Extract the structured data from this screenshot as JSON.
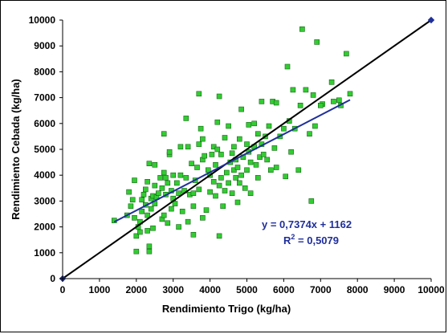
{
  "chart_data": {
    "type": "scatter",
    "xlabel": "Rendimiento Trigo (kg/ha)",
    "ylabel": "Rendimiento Cebada (kg/ha)",
    "xlim": [
      0,
      10000
    ],
    "ylim": [
      0,
      10000
    ],
    "xticks": [
      "0",
      "1000",
      "2000",
      "3000",
      "4000",
      "5000",
      "6000",
      "7000",
      "8000",
      "9000",
      "10000"
    ],
    "yticks": [
      "0",
      "1000",
      "2000",
      "3000",
      "4000",
      "5000",
      "6000",
      "7000",
      "8000",
      "9000",
      "10000"
    ],
    "grid": false,
    "legend": "none",
    "annotations": {
      "equation": "y = 0,7374x + 1162",
      "r2_prefix": "R",
      "r2_sup": "2",
      "r2_value": " = 0,5079"
    },
    "colors": {
      "points_fill": "#33cc33",
      "points_stroke": "#116611",
      "trend": "#1f2f9a",
      "one_to_one": "#000000",
      "text_annotation": "#1f2f9a"
    },
    "series": [
      {
        "kind": "points",
        "points": [
          [
            1400,
            2250
          ],
          [
            1750,
            2450
          ],
          [
            1800,
            3350
          ],
          [
            1850,
            2800
          ],
          [
            1900,
            3050
          ],
          [
            1950,
            2350
          ],
          [
            1950,
            3800
          ],
          [
            2000,
            1650
          ],
          [
            2000,
            1050
          ],
          [
            2050,
            2000
          ],
          [
            2100,
            1800
          ],
          [
            2100,
            2200
          ],
          [
            2150,
            2600
          ],
          [
            2150,
            3050
          ],
          [
            2200,
            3250
          ],
          [
            2250,
            2850
          ],
          [
            2250,
            3450
          ],
          [
            2300,
            1850
          ],
          [
            2300,
            2450
          ],
          [
            2300,
            3750
          ],
          [
            2350,
            1250
          ],
          [
            2350,
            1050
          ],
          [
            2350,
            4450
          ],
          [
            2400,
            2700
          ],
          [
            2400,
            3100
          ],
          [
            2450,
            1950
          ],
          [
            2450,
            3200
          ],
          [
            2500,
            2900
          ],
          [
            2500,
            3600
          ],
          [
            2500,
            4400
          ],
          [
            2550,
            3150
          ],
          [
            2600,
            3300
          ],
          [
            2650,
            3900
          ],
          [
            2700,
            2300
          ],
          [
            2700,
            3500
          ],
          [
            2750,
            2450
          ],
          [
            2750,
            4100
          ],
          [
            2750,
            5600
          ],
          [
            2800,
            3250
          ],
          [
            2800,
            3900
          ],
          [
            2850,
            2150
          ],
          [
            2850,
            3700
          ],
          [
            2900,
            4800
          ],
          [
            2900,
            4900
          ],
          [
            2950,
            2700
          ],
          [
            2950,
            3400
          ],
          [
            3000,
            3100
          ],
          [
            3000,
            4000
          ],
          [
            3050,
            2900
          ],
          [
            3100,
            3700
          ],
          [
            3150,
            2000
          ],
          [
            3150,
            3300
          ],
          [
            3200,
            4000
          ],
          [
            3200,
            5100
          ],
          [
            3250,
            2600
          ],
          [
            3300,
            3400
          ],
          [
            3350,
            6200
          ],
          [
            3350,
            3900
          ],
          [
            3400,
            2200
          ],
          [
            3400,
            5100
          ],
          [
            3450,
            3250
          ],
          [
            3500,
            4450
          ],
          [
            3550,
            1700
          ],
          [
            3550,
            2800
          ],
          [
            3550,
            3300
          ],
          [
            3600,
            3800
          ],
          [
            3650,
            4300
          ],
          [
            3700,
            3450
          ],
          [
            3700,
            5200
          ],
          [
            3700,
            7150
          ],
          [
            3750,
            5800
          ],
          [
            3800,
            2350
          ],
          [
            3800,
            4600
          ],
          [
            3800,
            5400
          ],
          [
            3850,
            4750
          ],
          [
            3900,
            2650
          ],
          [
            3950,
            4200
          ],
          [
            4000,
            3350
          ],
          [
            4000,
            4000
          ],
          [
            4050,
            4800
          ],
          [
            4100,
            3750
          ],
          [
            4100,
            5100
          ],
          [
            4150,
            3200
          ],
          [
            4150,
            4400
          ],
          [
            4200,
            6050
          ],
          [
            4200,
            5000
          ],
          [
            4250,
            3600
          ],
          [
            4250,
            7050
          ],
          [
            4250,
            1650
          ],
          [
            4300,
            3900
          ],
          [
            4300,
            4800
          ],
          [
            4350,
            2800
          ],
          [
            4400,
            3400
          ],
          [
            4400,
            5450
          ],
          [
            4450,
            4100
          ],
          [
            4500,
            3700
          ],
          [
            4500,
            5900
          ],
          [
            4550,
            4500
          ],
          [
            4600,
            3300
          ],
          [
            4600,
            4850
          ],
          [
            4650,
            4200
          ],
          [
            4650,
            5100
          ],
          [
            4700,
            3900
          ],
          [
            4700,
            4600
          ],
          [
            4750,
            2950
          ],
          [
            4750,
            4300
          ],
          [
            4800,
            5400
          ],
          [
            4800,
            3700
          ],
          [
            4850,
            4000
          ],
          [
            4850,
            6550
          ],
          [
            4900,
            4700
          ],
          [
            4950,
            3500
          ],
          [
            5000,
            4200
          ],
          [
            5000,
            5200
          ],
          [
            5050,
            5950
          ],
          [
            5050,
            4900
          ],
          [
            5100,
            3300
          ],
          [
            5100,
            4500
          ],
          [
            5200,
            5100
          ],
          [
            5200,
            6000
          ],
          [
            5250,
            4400
          ],
          [
            5300,
            5600
          ],
          [
            5300,
            3900
          ],
          [
            5350,
            4700
          ],
          [
            5400,
            5200
          ],
          [
            5400,
            6850
          ],
          [
            5450,
            4800
          ],
          [
            5500,
            5500
          ],
          [
            5550,
            4600
          ],
          [
            5600,
            5900
          ],
          [
            5650,
            4200
          ],
          [
            5700,
            6850
          ],
          [
            5750,
            5050
          ],
          [
            5800,
            6800
          ],
          [
            5800,
            4300
          ],
          [
            5900,
            5500
          ],
          [
            6000,
            5800
          ],
          [
            6050,
            3950
          ],
          [
            6100,
            8200
          ],
          [
            6150,
            6100
          ],
          [
            6200,
            4900
          ],
          [
            6250,
            7300
          ],
          [
            6300,
            5800
          ],
          [
            6400,
            4200
          ],
          [
            6450,
            6700
          ],
          [
            6500,
            9650
          ],
          [
            6600,
            7300
          ],
          [
            6700,
            5600
          ],
          [
            6750,
            3000
          ],
          [
            6800,
            7100
          ],
          [
            6850,
            5900
          ],
          [
            6900,
            9150
          ],
          [
            7050,
            6750
          ],
          [
            7350,
            6850
          ],
          [
            7500,
            6900
          ],
          [
            7550,
            6700
          ],
          [
            7700,
            8700
          ],
          [
            7800,
            7150
          ],
          [
            7300,
            7600
          ],
          [
            7000,
            6700
          ]
        ]
      },
      {
        "kind": "trendline",
        "x": [
          1400,
          7800
        ]
      },
      {
        "kind": "one-to-one",
        "x": [
          0,
          10000
        ]
      }
    ],
    "trend": {
      "slope": 0.7374,
      "intercept": 1162
    }
  }
}
